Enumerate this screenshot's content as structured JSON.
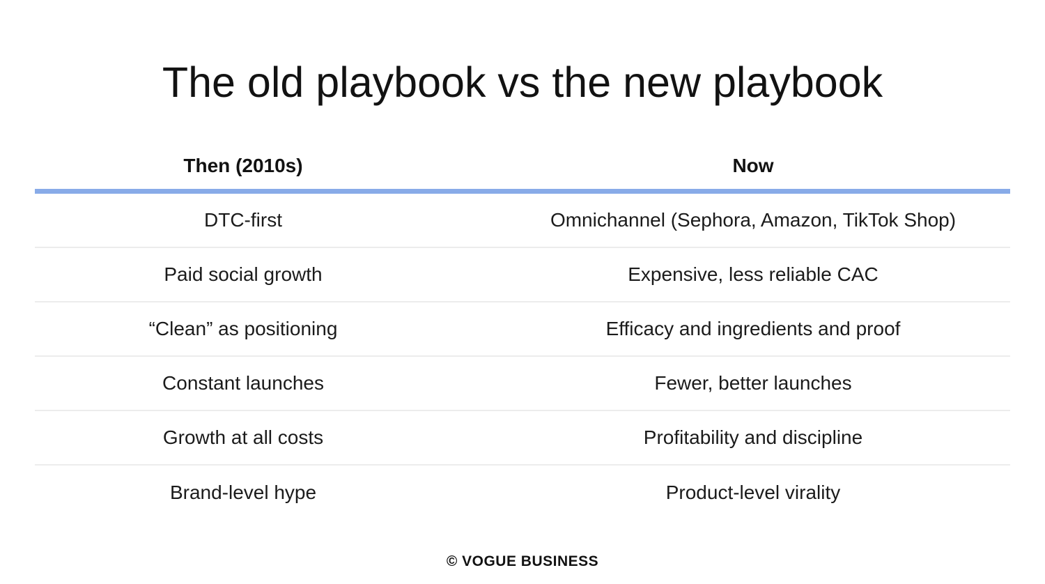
{
  "page": {
    "title": "The old playbook vs the new playbook",
    "footer": "© VOGUE BUSINESS"
  },
  "table": {
    "columns": [
      {
        "label": "Then (2010s)"
      },
      {
        "label": "Now"
      }
    ],
    "rows": [
      {
        "then": "DTC-first",
        "now": "Omnichannel (Sephora, Amazon, TikTok Shop)"
      },
      {
        "then": "Paid social growth",
        "now": "Expensive, less reliable CAC"
      },
      {
        "then": "“Clean” as positioning",
        "now": "Efficacy and ingredients and proof"
      },
      {
        "then": "Constant launches",
        "now": "Fewer, better launches"
      },
      {
        "then": "Growth at all costs",
        "now": "Profitability and discipline"
      },
      {
        "then": "Brand-level hype",
        "now": "Product-level virality"
      }
    ]
  },
  "colors": {
    "header_divider_blue": "#88abe8",
    "row_separator_gray": "#ececec",
    "text": "#121212",
    "background": "#ffffff"
  },
  "chart_data": {
    "type": "table",
    "title": "The old playbook vs the new playbook",
    "columns": [
      "Then (2010s)",
      "Now"
    ],
    "rows": [
      [
        "DTC-first",
        "Omnichannel (Sephora, Amazon, TikTok Shop)"
      ],
      [
        "Paid social growth",
        "Expensive, less reliable CAC"
      ],
      [
        "“Clean” as positioning",
        "Efficacy and ingredients and proof"
      ],
      [
        "Constant launches",
        "Fewer, better launches"
      ],
      [
        "Growth at all costs",
        "Profitability and discipline"
      ],
      [
        "Brand-level hype",
        "Product-level virality"
      ]
    ],
    "footer": "© VOGUE BUSINESS",
    "layout": {
      "grid": "horizontal row separators only",
      "legend": "none"
    }
  }
}
